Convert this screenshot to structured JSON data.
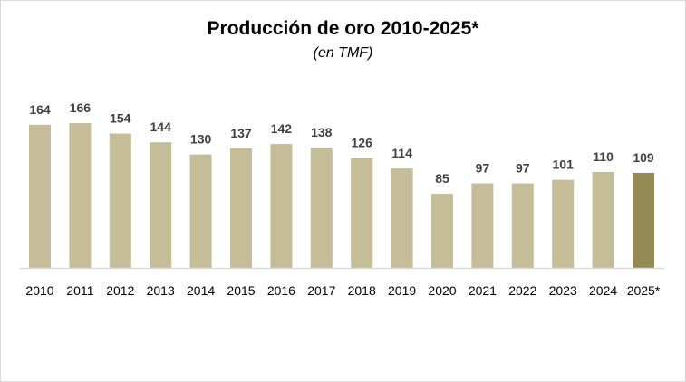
{
  "chart_data": {
    "type": "bar",
    "title": "Producción  de oro 2010-2025*",
    "subtitle": "(en TMF)",
    "xlabel": "",
    "ylabel": "",
    "categories": [
      "2010",
      "2011",
      "2012",
      "2013",
      "2014",
      "2015",
      "2016",
      "2017",
      "2018",
      "2019",
      "2020",
      "2021",
      "2022",
      "2023",
      "2024",
      "2025*"
    ],
    "values": [
      164,
      166,
      154,
      144,
      130,
      137,
      142,
      138,
      126,
      114,
      85,
      97,
      97,
      101,
      110,
      109
    ],
    "ylim": [
      0,
      170
    ],
    "grid": false,
    "colors": {
      "bar": "#C4BD97",
      "highlight": "#948A54",
      "label": "#404040",
      "axis": "#d9d9d9"
    },
    "highlight_index": 15
  }
}
